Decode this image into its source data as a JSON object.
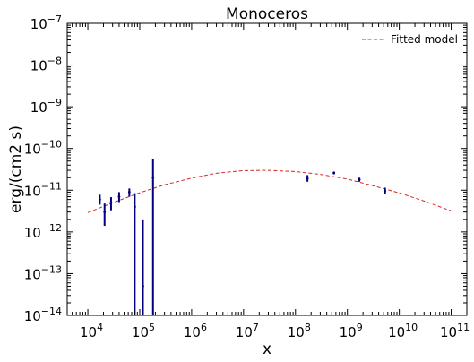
{
  "chart_data": {
    "type": "scatter",
    "title": "Monoceros",
    "xlabel": "x",
    "ylabel": "erg/(cm2 s)",
    "x_scale": "log",
    "y_scale": "log",
    "xlim": [
      4000,
      200000000000.0
    ],
    "ylim": [
      1e-14,
      1e-07
    ],
    "x_ticks": [
      {
        "value": 10000.0,
        "base": "10",
        "exp": "4"
      },
      {
        "value": 100000.0,
        "base": "10",
        "exp": "5"
      },
      {
        "value": 1000000.0,
        "base": "10",
        "exp": "6"
      },
      {
        "value": 10000000.0,
        "base": "10",
        "exp": "7"
      },
      {
        "value": 100000000.0,
        "base": "10",
        "exp": "8"
      },
      {
        "value": 1000000000.0,
        "base": "10",
        "exp": "9"
      },
      {
        "value": 10000000000.0,
        "base": "10",
        "exp": "10"
      },
      {
        "value": 100000000000.0,
        "base": "10",
        "exp": "11"
      }
    ],
    "y_ticks": [
      {
        "value": 1e-14,
        "base": "10",
        "exp": "−14"
      },
      {
        "value": 1e-13,
        "base": "10",
        "exp": "−13"
      },
      {
        "value": 1e-12,
        "base": "10",
        "exp": "−12"
      },
      {
        "value": 1e-11,
        "base": "10",
        "exp": "−11"
      },
      {
        "value": 1e-10,
        "base": "10",
        "exp": "−10"
      },
      {
        "value": 1e-09,
        "base": "10",
        "exp": "−9"
      },
      {
        "value": 1e-08,
        "base": "10",
        "exp": "−8"
      },
      {
        "value": 1e-07,
        "base": "10",
        "exp": "−7"
      }
    ],
    "grid": false,
    "legend": {
      "placement": "top-right",
      "entries": [
        {
          "label": "Fitted model",
          "color": "#d62728",
          "style": "dashed"
        }
      ]
    },
    "colors": {
      "data": "#000080",
      "model": "#d62728"
    },
    "series": [
      {
        "kind": "errorbar",
        "color": "#000080",
        "points": [
          {
            "x": 17000,
            "y": 6e-12,
            "ylo": 4.5e-12,
            "yhi": 7.8e-12
          },
          {
            "x": 21000,
            "y": 3e-12,
            "ylo": 1.4e-12,
            "yhi": 4.8e-12
          },
          {
            "x": 28000,
            "y": 5e-12,
            "ylo": 3.3e-12,
            "yhi": 6.8e-12
          },
          {
            "x": 40000,
            "y": 7e-12,
            "ylo": 5.2e-12,
            "yhi": 9e-12
          },
          {
            "x": 63000,
            "y": 9e-12,
            "ylo": 7e-12,
            "yhi": 1.1e-11
          },
          {
            "x": 80000,
            "y": 4e-12,
            "ylo": 1e-14,
            "yhi": 8.5e-12
          },
          {
            "x": 115000,
            "y": 5e-14,
            "ylo": 1e-14,
            "yhi": 2e-12
          },
          {
            "x": 180000,
            "y": 2e-11,
            "ylo": 1e-14,
            "yhi": 5.5e-11
          },
          {
            "x": 170000000.0,
            "y": 1.9e-11,
            "ylo": 1.6e-11,
            "yhi": 2.3e-11
          },
          {
            "x": 550000000.0,
            "y": 2.6e-11,
            "ylo": 2.4e-11,
            "yhi": 2.8e-11
          },
          {
            "x": 1700000000.0,
            "y": 1.8e-11,
            "ylo": 1.6e-11,
            "yhi": 2e-11
          },
          {
            "x": 5300000000.0,
            "y": 9.5e-12,
            "ylo": 8e-12,
            "yhi": 1.15e-11
          }
        ]
      },
      {
        "kind": "line",
        "name": "Fitted model",
        "color": "#d62728",
        "style": "dashed",
        "x": [
          10000.0,
          30000.0,
          100000.0,
          300000.0,
          1000000.0,
          3000000.0,
          10000000.0,
          30000000.0,
          100000000.0,
          300000000.0,
          1000000000.0,
          3000000000.0,
          10000000000.0,
          30000000000.0,
          100000000000.0
        ],
        "y": [
          2.9e-12,
          5e-12,
          8.7e-12,
          1.35e-11,
          1.95e-11,
          2.55e-11,
          2.95e-11,
          3e-11,
          2.8e-11,
          2.4e-11,
          1.85e-11,
          1.3e-11,
          8.6e-12,
          5.5e-12,
          3.2e-12
        ]
      }
    ]
  }
}
